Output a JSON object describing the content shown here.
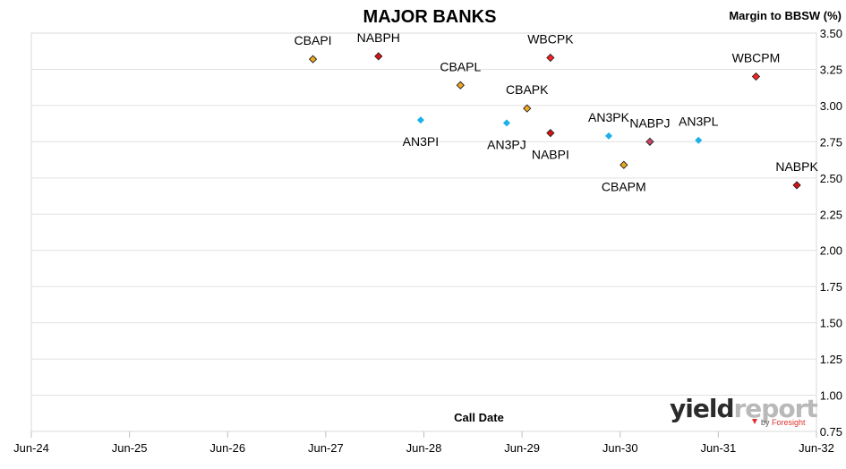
{
  "chart_data": {
    "type": "scatter",
    "title": "MAJOR BANKS",
    "xlabel": "Call Date",
    "ylabel": "Margin to BBSW (%)",
    "xticks": [
      "Jun-24",
      "Jun-25",
      "Jun-26",
      "Jun-27",
      "Jun-28",
      "Jun-29",
      "Jun-30",
      "Jun-31",
      "Jun-32"
    ],
    "xlim": [
      "Jun-24",
      "Jun-32"
    ],
    "ylim": [
      0.75,
      3.5
    ],
    "yticks": [
      "0.75",
      "1.00",
      "1.25",
      "1.50",
      "1.75",
      "2.00",
      "2.25",
      "2.50",
      "2.75",
      "3.00",
      "3.25",
      "3.50"
    ],
    "grid": "horizontal",
    "points": [
      {
        "label": "CBAPI",
        "x": "2027-04-15",
        "y": 3.32,
        "color": "#f0a820",
        "label_pos": "above"
      },
      {
        "label": "NABPH",
        "x": "2027-12-15",
        "y": 3.34,
        "color": "#dd1111",
        "label_pos": "above"
      },
      {
        "label": "CBAPL",
        "x": "2028-10-15",
        "y": 3.14,
        "color": "#f0a820",
        "label_pos": "above"
      },
      {
        "label": "AN3PI",
        "x": "2028-05-20",
        "y": 2.9,
        "color": "#1ab0e8",
        "label_pos": "below"
      },
      {
        "label": "WBCPK",
        "x": "2029-09-15",
        "y": 3.33,
        "color": "#ff2020",
        "label_pos": "above"
      },
      {
        "label": "CBAPK",
        "x": "2029-06-20",
        "y": 2.98,
        "color": "#f0a820",
        "label_pos": "above"
      },
      {
        "label": "AN3PJ",
        "x": "2029-04-05",
        "y": 2.88,
        "color": "#1ab0e8",
        "label_pos": "below"
      },
      {
        "label": "NABPI",
        "x": "2029-09-15",
        "y": 2.81,
        "color": "#dd1111",
        "label_pos": "below"
      },
      {
        "label": "AN3PK",
        "x": "2030-04-20",
        "y": 2.79,
        "color": "#1ab0e8",
        "label_pos": "above"
      },
      {
        "label": "NABPJ",
        "x": "2030-09-20",
        "y": 2.75,
        "color": "#cc4466",
        "label_pos": "above"
      },
      {
        "label": "AN3PL",
        "x": "2031-03-20",
        "y": 2.76,
        "color": "#1ab0e8",
        "label_pos": "above"
      },
      {
        "label": "CBAPM",
        "x": "2030-06-15",
        "y": 2.59,
        "color": "#f0a820",
        "label_pos": "below"
      },
      {
        "label": "WBCPM",
        "x": "2031-10-20",
        "y": 3.2,
        "color": "#ff2020",
        "label_pos": "above"
      },
      {
        "label": "NABPK",
        "x": "2032-03-20",
        "y": 2.45,
        "color": "#dd1111",
        "label_pos": "above"
      }
    ]
  },
  "watermark": {
    "text_dark": "yield",
    "text_light": "report",
    "by_text": "by",
    "by_brand": "Foresight"
  }
}
